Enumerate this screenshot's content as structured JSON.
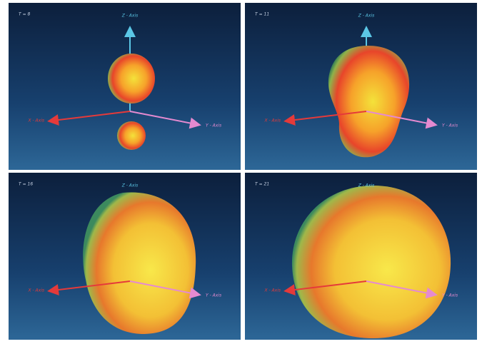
{
  "panels": [
    {
      "label": "T = 8",
      "z_axis": "Z - Axis",
      "x_axis": "X - Axis",
      "y_axis": "Y - Axis"
    },
    {
      "label": "T = 11",
      "z_axis": "Z - Axis",
      "x_axis": "X - Axis",
      "y_axis": "Y - Axis"
    },
    {
      "label": "T = 16",
      "z_axis": "Z - Axis",
      "x_axis": "X - Axis",
      "y_axis": "Y - Axis"
    },
    {
      "label": "T = 21",
      "z_axis": "Z - Axis",
      "x_axis": "X - Axis",
      "y_axis": "Y - Axis"
    }
  ]
}
